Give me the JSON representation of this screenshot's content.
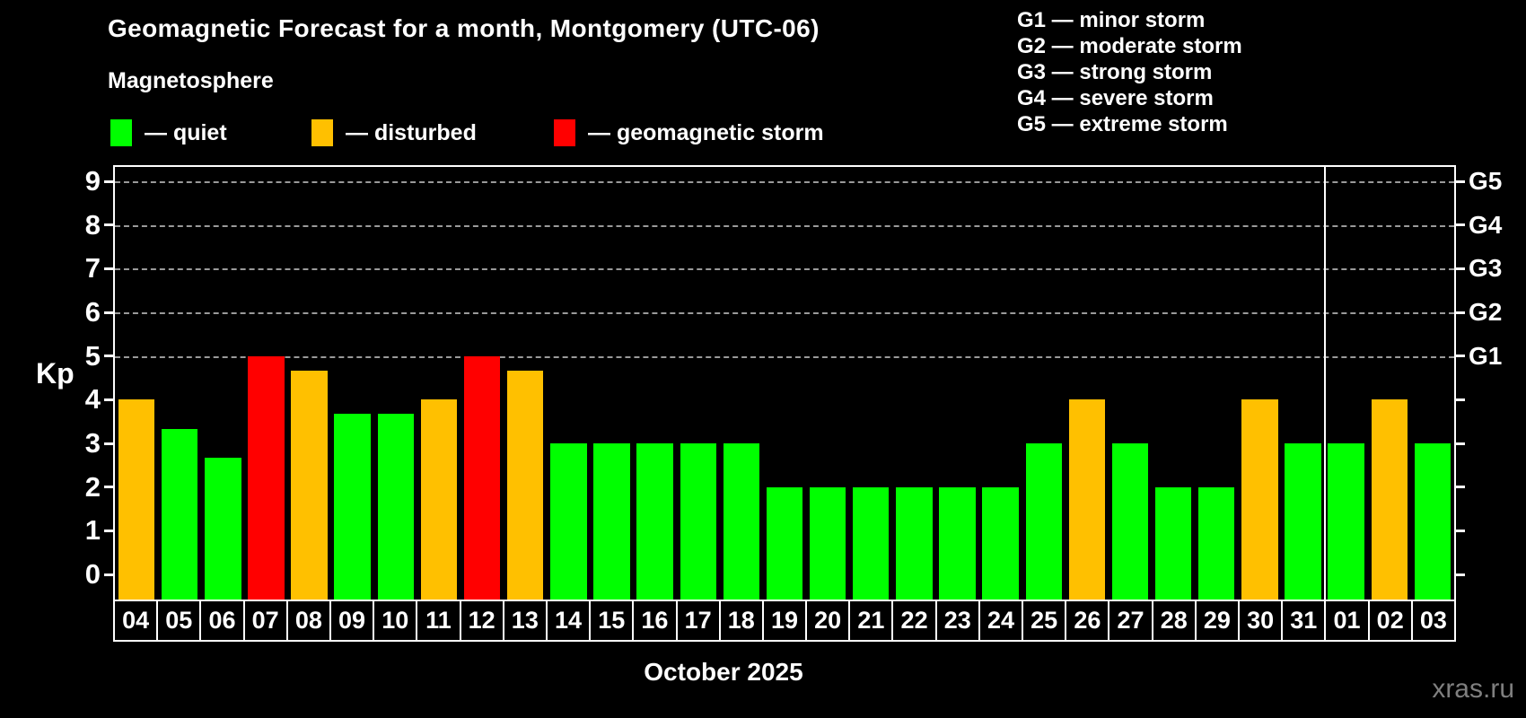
{
  "header": {
    "title": "Geomagnetic Forecast for a month, Montgomery (UTC-06)",
    "subtitle": "Magnetosphere",
    "legend": [
      {
        "status": "quiet",
        "label": "— quiet",
        "color": "#00ff00"
      },
      {
        "status": "disturbed",
        "label": "— disturbed",
        "color": "#ffc000"
      },
      {
        "status": "storm",
        "label": "— geomagnetic storm",
        "color": "#ff0000"
      }
    ],
    "g_scale_legend": [
      "G1 — minor storm",
      "G2 — moderate storm",
      "G3 — strong storm",
      "G4 — severe storm",
      "G5 — extreme storm"
    ]
  },
  "footer": {
    "month_label": "October 2025",
    "watermark": "xras.ru"
  },
  "chart_data": {
    "type": "bar",
    "title": "Geomagnetic Forecast for a month, Montgomery (UTC-06)",
    "subtitle": "Magnetosphere",
    "ylabel": "Kp",
    "xlabel": "October 2025",
    "ylim": [
      0,
      9
    ],
    "yticks": [
      0,
      1,
      2,
      3,
      4,
      5,
      6,
      7,
      8,
      9
    ],
    "gridlines_at": [
      5,
      6,
      7,
      8,
      9
    ],
    "right_axis_labels": [
      {
        "kp": 5,
        "label": "G1"
      },
      {
        "kp": 6,
        "label": "G2"
      },
      {
        "kp": 7,
        "label": "G3"
      },
      {
        "kp": 8,
        "label": "G4"
      },
      {
        "kp": 9,
        "label": "G5"
      }
    ],
    "legend_colors": {
      "quiet": "#00ff00",
      "disturbed": "#ffc000",
      "storm": "#ff0000"
    },
    "separator_after_index": 27,
    "days": [
      {
        "label": "04",
        "kp": 4.0,
        "status": "disturbed"
      },
      {
        "label": "05",
        "kp": 3.33,
        "status": "quiet"
      },
      {
        "label": "06",
        "kp": 2.67,
        "status": "quiet"
      },
      {
        "label": "07",
        "kp": 5.0,
        "status": "storm"
      },
      {
        "label": "08",
        "kp": 4.67,
        "status": "disturbed"
      },
      {
        "label": "09",
        "kp": 3.67,
        "status": "quiet"
      },
      {
        "label": "10",
        "kp": 3.67,
        "status": "quiet"
      },
      {
        "label": "11",
        "kp": 4.0,
        "status": "disturbed"
      },
      {
        "label": "12",
        "kp": 5.0,
        "status": "storm"
      },
      {
        "label": "13",
        "kp": 4.67,
        "status": "disturbed"
      },
      {
        "label": "14",
        "kp": 3.0,
        "status": "quiet"
      },
      {
        "label": "15",
        "kp": 3.0,
        "status": "quiet"
      },
      {
        "label": "16",
        "kp": 3.0,
        "status": "quiet"
      },
      {
        "label": "17",
        "kp": 3.0,
        "status": "quiet"
      },
      {
        "label": "18",
        "kp": 3.0,
        "status": "quiet"
      },
      {
        "label": "19",
        "kp": 2.0,
        "status": "quiet"
      },
      {
        "label": "20",
        "kp": 2.0,
        "status": "quiet"
      },
      {
        "label": "21",
        "kp": 2.0,
        "status": "quiet"
      },
      {
        "label": "22",
        "kp": 2.0,
        "status": "quiet"
      },
      {
        "label": "23",
        "kp": 2.0,
        "status": "quiet"
      },
      {
        "label": "24",
        "kp": 2.0,
        "status": "quiet"
      },
      {
        "label": "25",
        "kp": 3.0,
        "status": "quiet"
      },
      {
        "label": "26",
        "kp": 4.0,
        "status": "disturbed"
      },
      {
        "label": "27",
        "kp": 3.0,
        "status": "quiet"
      },
      {
        "label": "28",
        "kp": 2.0,
        "status": "quiet"
      },
      {
        "label": "29",
        "kp": 2.0,
        "status": "quiet"
      },
      {
        "label": "30",
        "kp": 4.0,
        "status": "disturbed"
      },
      {
        "label": "31",
        "kp": 3.0,
        "status": "quiet"
      },
      {
        "label": "01",
        "kp": 3.0,
        "status": "quiet"
      },
      {
        "label": "02",
        "kp": 4.0,
        "status": "disturbed"
      },
      {
        "label": "03",
        "kp": 3.0,
        "status": "quiet"
      }
    ]
  }
}
